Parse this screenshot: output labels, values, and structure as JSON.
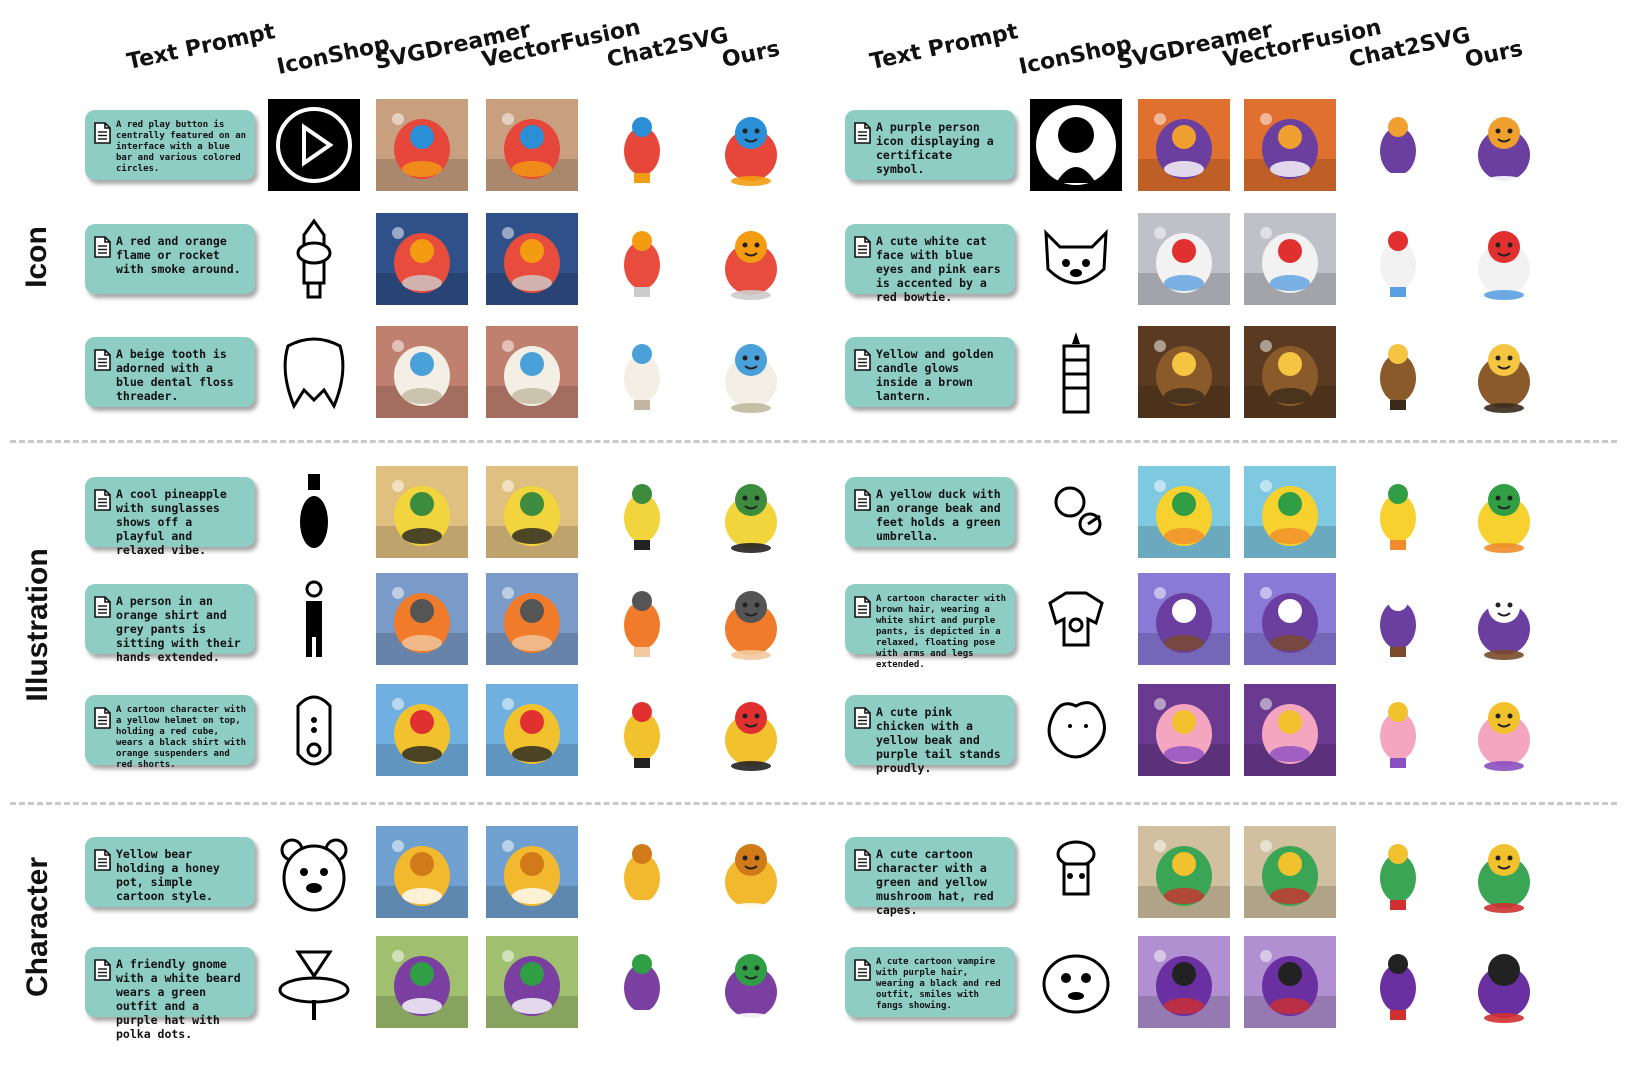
{
  "columns": [
    "Text Prompt",
    "IconShop",
    "SVGDreamer",
    "VectorFusion",
    "Chat2SVG",
    "Ours",
    "Text Prompt",
    "IconShop",
    "SVGDreamer",
    "VectorFusion",
    "Chat2SVG",
    "Ours"
  ],
  "sections": [
    "Icon",
    "Illustration",
    "Character"
  ],
  "rows": [
    {
      "left": "A red play button is centrally featured on an interface with a blue bar and various colored circles.",
      "right": "A purple person icon displaying a certificate symbol."
    },
    {
      "left": "A red and orange flame or rocket with smoke around.",
      "right": "A cute white cat face with blue eyes and pink ears is accented by a red bowtie."
    },
    {
      "left": "A beige tooth is adorned with a blue dental floss threader.",
      "right": "Yellow and golden candle glows inside a brown lantern."
    },
    {
      "left": "A cool pineapple with sunglasses shows off a playful and relaxed vibe.",
      "right": "A yellow duck with an orange beak and feet holds a green umbrella."
    },
    {
      "left": "A person in an orange shirt and grey pants is sitting with their hands extended.",
      "right": "A cartoon character with brown hair, wearing a white shirt and purple pants, is depicted in a relaxed, floating pose with arms and legs extended."
    },
    {
      "left": "A cartoon character with a yellow helmet on top, holding a red cube, wears a black shirt with orange suspenders and red shorts.",
      "right": "A cute pink chicken with a yellow beak and purple tail stands proudly."
    },
    {
      "left": "Yellow bear holding a honey pot, simple cartoon style.",
      "right": "A cute cartoon character with a green and yellow mushroom hat, red capes."
    },
    {
      "left": "A friendly gnome with a white beard wears a green outfit and a purple hat with polka dots.",
      "right": "A cute cartoon vampire with purple hair, wearing a black and red outfit, smiles with fangs showing."
    }
  ],
  "cells": [
    [
      "play-button",
      "play-button",
      "play-button",
      "play-button",
      "play-button",
      "person-icon",
      "person-icon",
      "person-icon",
      "person-icon",
      "person-icon"
    ],
    [
      "rocket",
      "rocket",
      "rocket",
      "rocket",
      "rocket",
      "cat-face",
      "cat-face",
      "cat-face",
      "cat-face",
      "cat-face"
    ],
    [
      "tooth",
      "tooth",
      "tooth",
      "tooth",
      "tooth",
      "lantern",
      "lantern",
      "lantern",
      "lantern",
      "lantern"
    ],
    [
      "pineapple",
      "pineapple",
      "pineapple",
      "pineapple",
      "pineapple",
      "duck",
      "duck",
      "duck",
      "duck",
      "duck"
    ],
    [
      "person",
      "person",
      "person",
      "person",
      "person",
      "floating-character",
      "floating-character",
      "floating-character",
      "floating-character",
      "floating-character"
    ],
    [
      "helmet-character",
      "helmet-character",
      "helmet-character",
      "helmet-character",
      "helmet-character",
      "chicken",
      "chicken",
      "chicken",
      "chicken",
      "chicken"
    ],
    [
      "bear",
      "bear",
      "bear",
      "bear",
      "bear",
      "mushroom-character",
      "mushroom-character",
      "mushroom-character",
      "mushroom-character",
      "mushroom-character"
    ],
    [
      "gnome",
      "gnome",
      "gnome",
      "gnome",
      "gnome",
      "vampire",
      "vampire",
      "vampire",
      "vampire",
      "vampire"
    ]
  ],
  "colors": {
    "prompt_bg": "#8ecdc4",
    "divider": "#c9c9c9"
  }
}
